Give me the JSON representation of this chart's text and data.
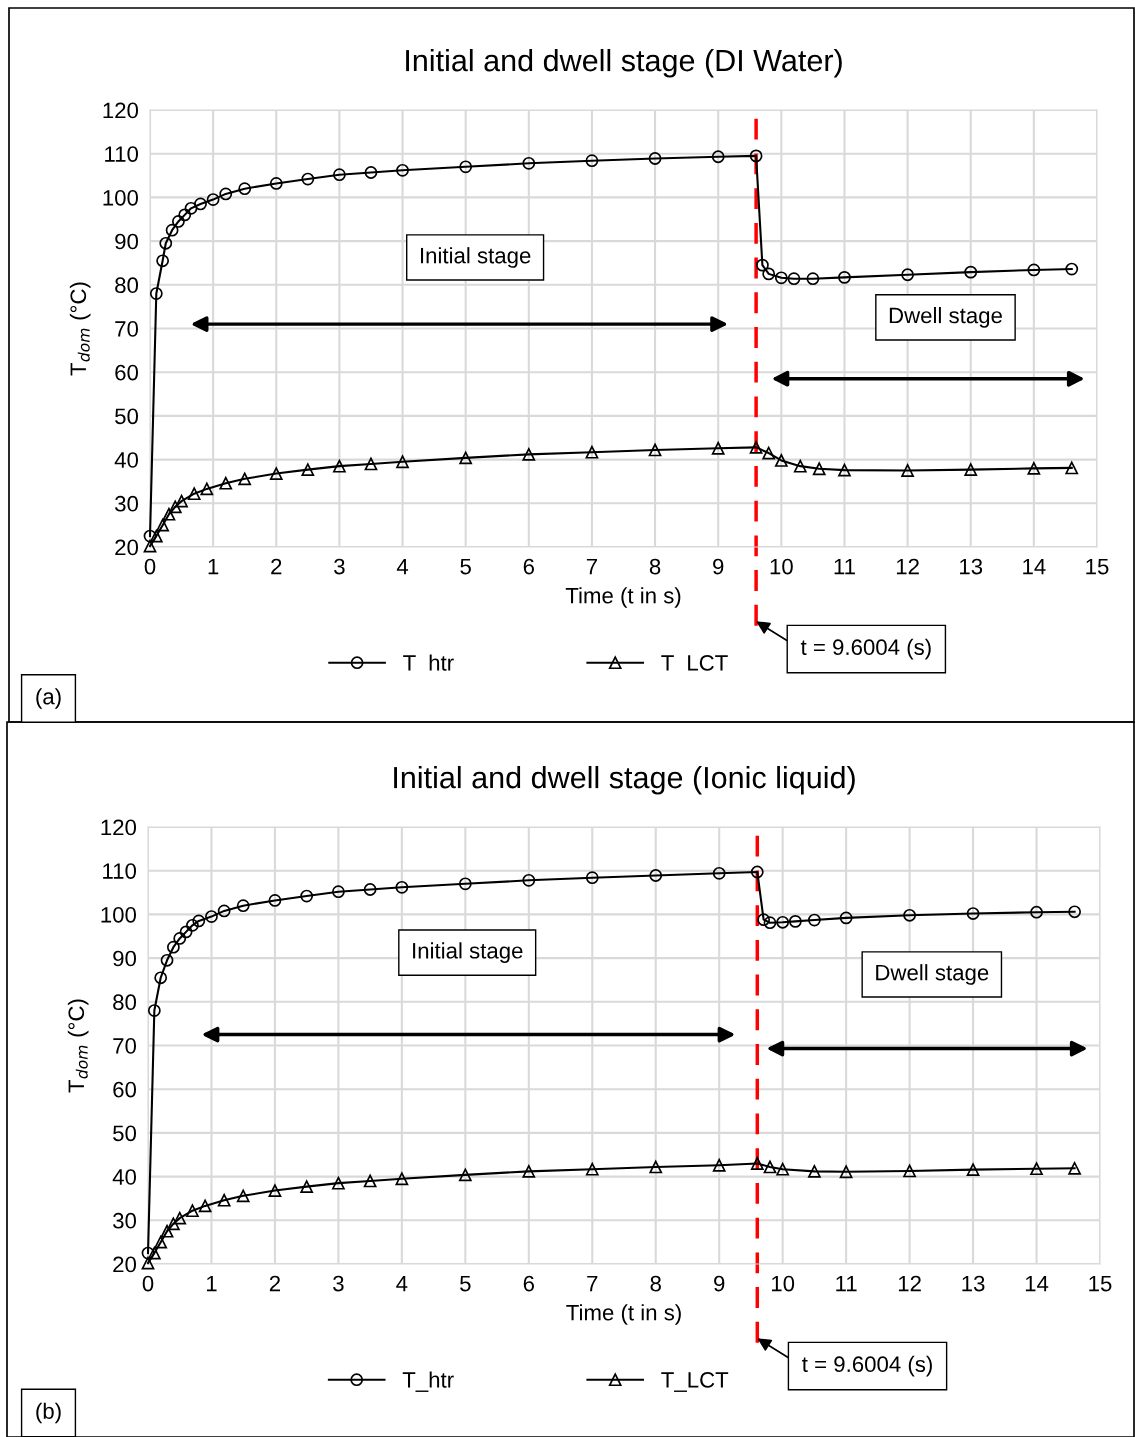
{
  "chart_data": [
    {
      "type": "line",
      "title": "Initial and dwell stage (DI Water)",
      "xlabel": "Time (t in s)",
      "ylabel": "T$_{dom}$ (°C)",
      "xlim": [
        0,
        15
      ],
      "xticks": [
        0,
        1,
        2,
        3,
        4,
        5,
        6,
        7,
        8,
        9,
        10,
        11,
        12,
        13,
        14,
        15
      ],
      "ylim": [
        20,
        120
      ],
      "yticks": [
        20,
        30,
        40,
        50,
        60,
        70,
        80,
        90,
        100,
        110,
        120
      ],
      "grid": true,
      "legend": "bottom",
      "line_style": "solid",
      "series": [
        {
          "name": "T  htr",
          "color": "#000000",
          "marker": "circle",
          "x": [
            0,
            0.1,
            0.2,
            0.25,
            0.35,
            0.45,
            0.55,
            0.65,
            0.8,
            1.0,
            1.2,
            1.5,
            2,
            2.5,
            3,
            3.5,
            4,
            5,
            6,
            7,
            8,
            9,
            9.6,
            9.7,
            9.8,
            10,
            10.2,
            10.5,
            11,
            12,
            13,
            14,
            14.6
          ],
          "values": [
            22.5,
            78,
            85.5,
            89.5,
            92.5,
            94.5,
            96,
            97.5,
            98.5,
            99.5,
            100.8,
            102,
            103.2,
            104.2,
            105.2,
            105.7,
            106.2,
            107,
            107.8,
            108.4,
            108.9,
            109.3,
            109.5,
            84.5,
            82.5,
            81.6,
            81.4,
            81.4,
            81.7,
            82.3,
            82.9,
            83.4,
            83.6
          ]
        },
        {
          "name": "T  LCT",
          "color": "#000000",
          "marker": "triangle",
          "x": [
            0,
            0.1,
            0.2,
            0.3,
            0.4,
            0.5,
            0.7,
            0.9,
            1.2,
            1.5,
            2,
            2.5,
            3,
            3.5,
            4,
            5,
            6,
            7,
            8,
            9,
            9.6,
            9.8,
            10,
            10.3,
            10.6,
            11,
            12,
            13,
            14,
            14.6
          ],
          "values": [
            20.2,
            22.5,
            25,
            27.5,
            29.2,
            30.5,
            32.2,
            33.3,
            34.6,
            35.6,
            36.8,
            37.7,
            38.5,
            39,
            39.5,
            40.4,
            41.2,
            41.7,
            42.2,
            42.6,
            42.8,
            41.5,
            39.8,
            38.5,
            37.9,
            37.6,
            37.5,
            37.7,
            38,
            38.1
          ]
        }
      ],
      "ref_lines": [
        {
          "axis": "x",
          "value": 9.6004,
          "label": "t = 9.6004 (s)",
          "color": "#ff0000",
          "line_style": "dashed"
        }
      ],
      "annotations": [
        "Initial stage",
        "Dwell stage",
        "(a)"
      ]
    },
    {
      "type": "line",
      "title": "Initial and dwell stage (Ionic liquid)",
      "xlabel": "Time (t in s)",
      "ylabel": "T$_{dom}$ (°C)",
      "xlim": [
        0,
        15
      ],
      "xticks": [
        0,
        1,
        2,
        3,
        4,
        5,
        6,
        7,
        8,
        9,
        10,
        11,
        12,
        13,
        14,
        15
      ],
      "ylim": [
        20,
        120
      ],
      "yticks": [
        20,
        30,
        40,
        50,
        60,
        70,
        80,
        90,
        100,
        110,
        120
      ],
      "grid": true,
      "legend": "bottom",
      "line_style": "solid",
      "series": [
        {
          "name": "T_htr",
          "color": "#000000",
          "marker": "circle",
          "x": [
            0,
            0.1,
            0.2,
            0.3,
            0.4,
            0.5,
            0.6,
            0.7,
            0.8,
            1.0,
            1.2,
            1.5,
            2,
            2.5,
            3,
            3.5,
            4,
            5,
            6,
            7,
            8,
            9,
            9.6,
            9.7,
            9.8,
            10,
            10.2,
            10.5,
            11,
            12,
            13,
            14,
            14.6
          ],
          "values": [
            22.5,
            78,
            85.5,
            89.5,
            92.5,
            94.5,
            96,
            97.5,
            98.5,
            99.5,
            100.8,
            102,
            103.2,
            104.2,
            105.2,
            105.7,
            106.2,
            107,
            107.8,
            108.4,
            108.9,
            109.4,
            109.7,
            98.8,
            98.1,
            98.2,
            98.4,
            98.7,
            99.2,
            99.8,
            100.2,
            100.5,
            100.6
          ]
        },
        {
          "name": "T_LCT",
          "color": "#000000",
          "marker": "triangle",
          "x": [
            0,
            0.1,
            0.2,
            0.3,
            0.4,
            0.5,
            0.7,
            0.9,
            1.2,
            1.5,
            2,
            2.5,
            3,
            3.5,
            4,
            5,
            6,
            7,
            8,
            9,
            9.6,
            9.8,
            10,
            10.5,
            11,
            12,
            13,
            14,
            14.6
          ],
          "values": [
            20.2,
            22.5,
            25,
            27.5,
            29.2,
            30.5,
            32.2,
            33.3,
            34.6,
            35.6,
            36.8,
            37.7,
            38.5,
            39,
            39.5,
            40.4,
            41.2,
            41.7,
            42.2,
            42.6,
            43,
            42.2,
            41.7,
            41.2,
            41.1,
            41.3,
            41.6,
            41.8,
            41.9
          ]
        }
      ],
      "ref_lines": [
        {
          "axis": "x",
          "value": 9.6004,
          "label": "t = 9.6004 (s)",
          "color": "#ff0000",
          "line_style": "dashed"
        }
      ],
      "annotations": [
        "Initial stage",
        "Dwell stage",
        "(b)"
      ]
    }
  ]
}
